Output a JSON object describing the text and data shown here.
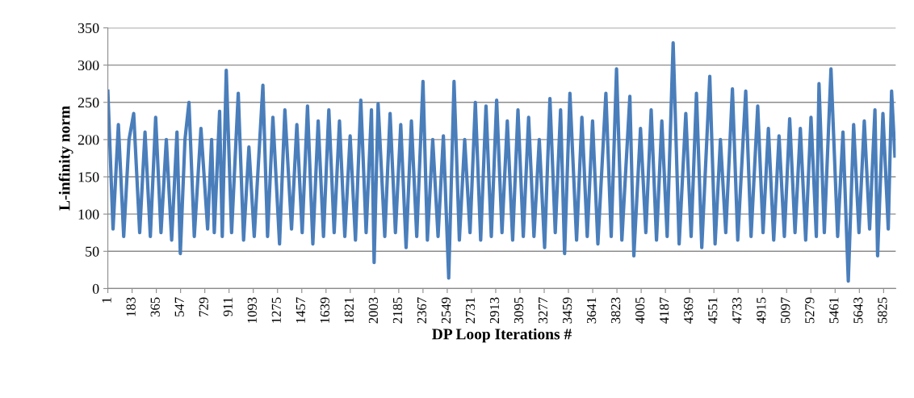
{
  "chart_data": {
    "type": "line",
    "xlabel": "DP Loop Iterations #",
    "ylabel": "L-infinity norm",
    "xlim": [
      1,
      5916
    ],
    "xticks": [
      1,
      183,
      365,
      547,
      729,
      911,
      1093,
      1275,
      1457,
      1639,
      1821,
      2003,
      2185,
      2367,
      2549,
      2731,
      2913,
      3095,
      3277,
      3459,
      3641,
      3823,
      4005,
      4187,
      4369,
      4551,
      4733,
      4915,
      5097,
      5279,
      5461,
      5643,
      5825
    ],
    "ylim": [
      0,
      350
    ],
    "yticks": [
      0,
      50,
      100,
      150,
      200,
      250,
      300,
      350
    ],
    "grid": "y",
    "marker": "none",
    "line_style": "solid",
    "series": [
      {
        "color": "#4a7ebb",
        "x": [
          1,
          40,
          80,
          120,
          160,
          195,
          240,
          280,
          320,
          360,
          400,
          440,
          480,
          520,
          545,
          580,
          610,
          650,
          700,
          750,
          780,
          800,
          840,
          860,
          890,
          930,
          980,
          1020,
          1060,
          1100,
          1165,
          1200,
          1240,
          1290,
          1330,
          1380,
          1420,
          1460,
          1500,
          1540,
          1580,
          1620,
          1660,
          1700,
          1740,
          1780,
          1820,
          1860,
          1900,
          1940,
          1980,
          2000,
          2030,
          2080,
          2120,
          2160,
          2200,
          2240,
          2280,
          2320,
          2367,
          2400,
          2440,
          2480,
          2520,
          2560,
          2600,
          2640,
          2680,
          2720,
          2760,
          2800,
          2840,
          2880,
          2920,
          2960,
          3000,
          3040,
          3080,
          3120,
          3160,
          3200,
          3240,
          3280,
          3320,
          3360,
          3400,
          3430,
          3470,
          3520,
          3560,
          3600,
          3640,
          3680,
          3740,
          3780,
          3820,
          3860,
          3920,
          3950,
          4000,
          4040,
          4080,
          4120,
          4160,
          4200,
          4245,
          4290,
          4340,
          4380,
          4420,
          4460,
          4520,
          4560,
          4600,
          4640,
          4690,
          4730,
          4790,
          4830,
          4880,
          4920,
          4960,
          5000,
          5040,
          5080,
          5120,
          5160,
          5200,
          5240,
          5280,
          5320,
          5340,
          5380,
          5430,
          5480,
          5520,
          5560,
          5600,
          5640,
          5680,
          5720,
          5760,
          5780,
          5820,
          5860,
          5885,
          5910
        ],
        "values": [
          265,
          80,
          220,
          70,
          200,
          235,
          75,
          210,
          70,
          230,
          75,
          200,
          65,
          210,
          47,
          200,
          250,
          70,
          215,
          80,
          200,
          75,
          238,
          70,
          293,
          75,
          262,
          65,
          190,
          70,
          273,
          70,
          230,
          60,
          240,
          80,
          220,
          75,
          245,
          60,
          225,
          70,
          240,
          75,
          225,
          70,
          205,
          65,
          253,
          75,
          240,
          35,
          248,
          70,
          235,
          75,
          220,
          55,
          225,
          70,
          278,
          65,
          200,
          70,
          205,
          14,
          278,
          65,
          200,
          75,
          250,
          65,
          245,
          70,
          253,
          75,
          225,
          65,
          240,
          70,
          230,
          70,
          200,
          55,
          255,
          75,
          240,
          47,
          262,
          65,
          230,
          70,
          225,
          60,
          262,
          70,
          295,
          65,
          258,
          44,
          215,
          75,
          240,
          65,
          225,
          70,
          330,
          60,
          235,
          70,
          262,
          55,
          285,
          60,
          200,
          75,
          268,
          65,
          265,
          70,
          245,
          75,
          215,
          65,
          205,
          70,
          228,
          75,
          215,
          65,
          230,
          70,
          275,
          75,
          295,
          70,
          210,
          10,
          220,
          75,
          225,
          80,
          240,
          44,
          235,
          80,
          265,
          178
        ]
      }
    ]
  }
}
